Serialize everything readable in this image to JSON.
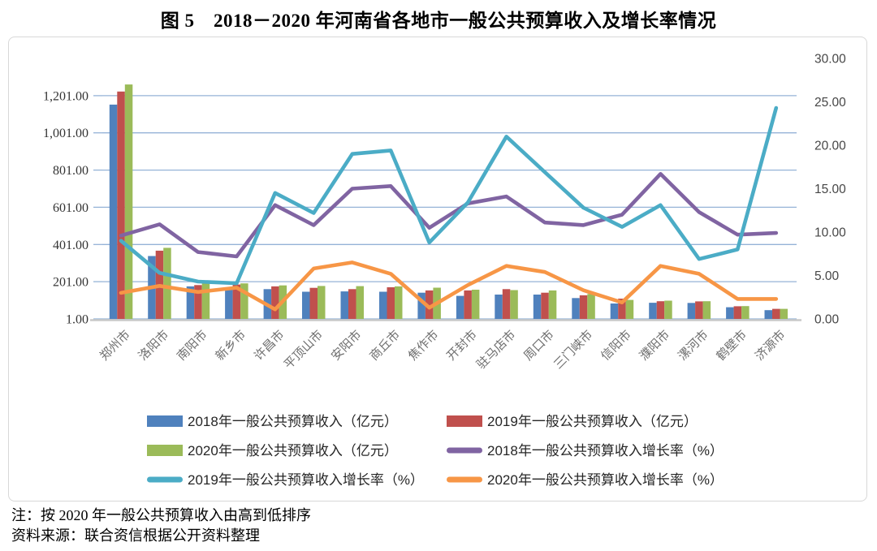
{
  "title": "图 5　2018－2020 年河南省各地市一般公共预算收入及增长率情况",
  "notes": {
    "note": "注：按 2020 年一般公共预算收入由高到低排序",
    "source": "资料来源：联合资信根据公开资料整理"
  },
  "chart_data": {
    "type": "bar+line combo (bars on left axis, lines on right axis)",
    "title": "图 5　2018－2020 年河南省各地市一般公共预算收入及增长率情况",
    "categories": [
      "郑州市",
      "洛阳市",
      "南阳市",
      "新乡市",
      "许昌市",
      "平顶山市",
      "安阳市",
      "商丘市",
      "焦作市",
      "开封市",
      "驻马店市",
      "周口市",
      "三门峡市",
      "信阳市",
      "濮阳市",
      "漯河市",
      "鹤壁市",
      "济源市"
    ],
    "series": [
      {
        "name": "2018年一般公共预算收入（亿元）",
        "chart": "bar",
        "axis": "left",
        "color": "#4F81BD",
        "values": [
          1153,
          339,
          176,
          164,
          161,
          147,
          149,
          147,
          142,
          125,
          132,
          132,
          113,
          84,
          88,
          87,
          64,
          48
        ]
      },
      {
        "name": "2019年一般公共预算收入（亿元）",
        "chart": "bar",
        "axis": "left",
        "color": "#C0504D",
        "values": [
          1223,
          368,
          183,
          186,
          176,
          168,
          161,
          171,
          154,
          154,
          161,
          142,
          128,
          110,
          96,
          95,
          69,
          55
        ]
      },
      {
        "name": "2020年一般公共预算收入（亿元）",
        "chart": "bar",
        "axis": "left",
        "color": "#9BBB59",
        "values": [
          1261,
          383,
          195,
          192,
          181,
          178,
          177,
          176,
          169,
          158,
          156,
          154,
          135,
          103,
          99,
          96,
          70,
          55
        ]
      },
      {
        "name": "2018年一般公共预算收入增长率（%）",
        "chart": "line",
        "axis": "right",
        "color": "#8064A2",
        "values": [
          9.6,
          10.9,
          7.7,
          7.2,
          13.1,
          10.8,
          15.0,
          15.3,
          10.5,
          13.3,
          14.1,
          11.1,
          10.8,
          12.0,
          16.7,
          12.3,
          9.7,
          9.9
        ]
      },
      {
        "name": "2019年一般公共预算收入增长率（%）",
        "chart": "line",
        "axis": "right",
        "color": "#4BACC6",
        "values": [
          9.0,
          5.3,
          4.3,
          4.1,
          14.5,
          12.2,
          19.0,
          19.4,
          8.8,
          13.4,
          21.0,
          16.9,
          12.8,
          10.6,
          13.1,
          6.9,
          8.0,
          24.3
        ]
      },
      {
        "name": "2020年一般公共预算收入增长率（%）",
        "chart": "line",
        "axis": "right",
        "color": "#F79646",
        "values": [
          3.0,
          3.8,
          3.1,
          3.6,
          1.1,
          5.8,
          6.5,
          5.2,
          1.3,
          3.9,
          6.1,
          5.4,
          3.3,
          1.9,
          6.1,
          5.2,
          2.3,
          2.3
        ]
      }
    ],
    "left_axis": {
      "unit": "亿元",
      "min": 1,
      "scale_max": 1401,
      "tick_labels": [
        "1,201.00",
        "1,001.00",
        "801.00",
        "601.00",
        "401.00",
        "201.00",
        "1.00"
      ],
      "tick_values": [
        1201,
        1001,
        801,
        601,
        401,
        201,
        1
      ]
    },
    "right_axis": {
      "unit": "%",
      "min": 0,
      "scale_max": 30,
      "tick_labels": [
        "30.00",
        "25.00",
        "20.00",
        "15.00",
        "10.00",
        "5.00",
        "0.00"
      ],
      "tick_values": [
        30,
        25,
        20,
        15,
        10,
        5,
        0
      ]
    },
    "grid": true,
    "gridline_color": "#95B3D7",
    "axis_line_color": "#c9c9c9",
    "legend_position": "bottom"
  }
}
